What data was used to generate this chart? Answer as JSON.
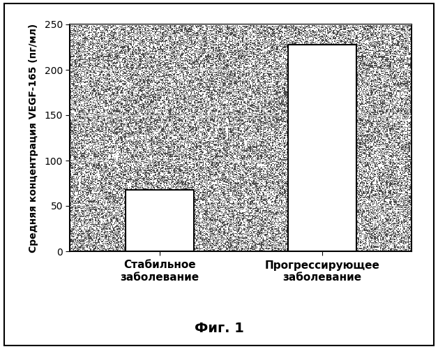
{
  "categories": [
    "Стабильное\nзаболевание",
    "Прогрессирующее\nзаболевание"
  ],
  "values": [
    68,
    228
  ],
  "bar_color": "#ffffff",
  "bar_edgecolor": "#000000",
  "figure_bg": "#ffffff",
  "ylabel": "Средняя концентрация VEGF-165 (пг/мл)",
  "ylim": [
    0,
    250
  ],
  "yticks": [
    0,
    50,
    100,
    150,
    200,
    250
  ],
  "caption": "Фиг. 1",
  "bar_width": 0.42,
  "figsize": [
    6.28,
    5.0
  ],
  "dpi": 100,
  "noise_seed": 42,
  "n_noise_dots": 60000,
  "noise_dot_size": 0.8,
  "frame_linewidth": 1.5
}
